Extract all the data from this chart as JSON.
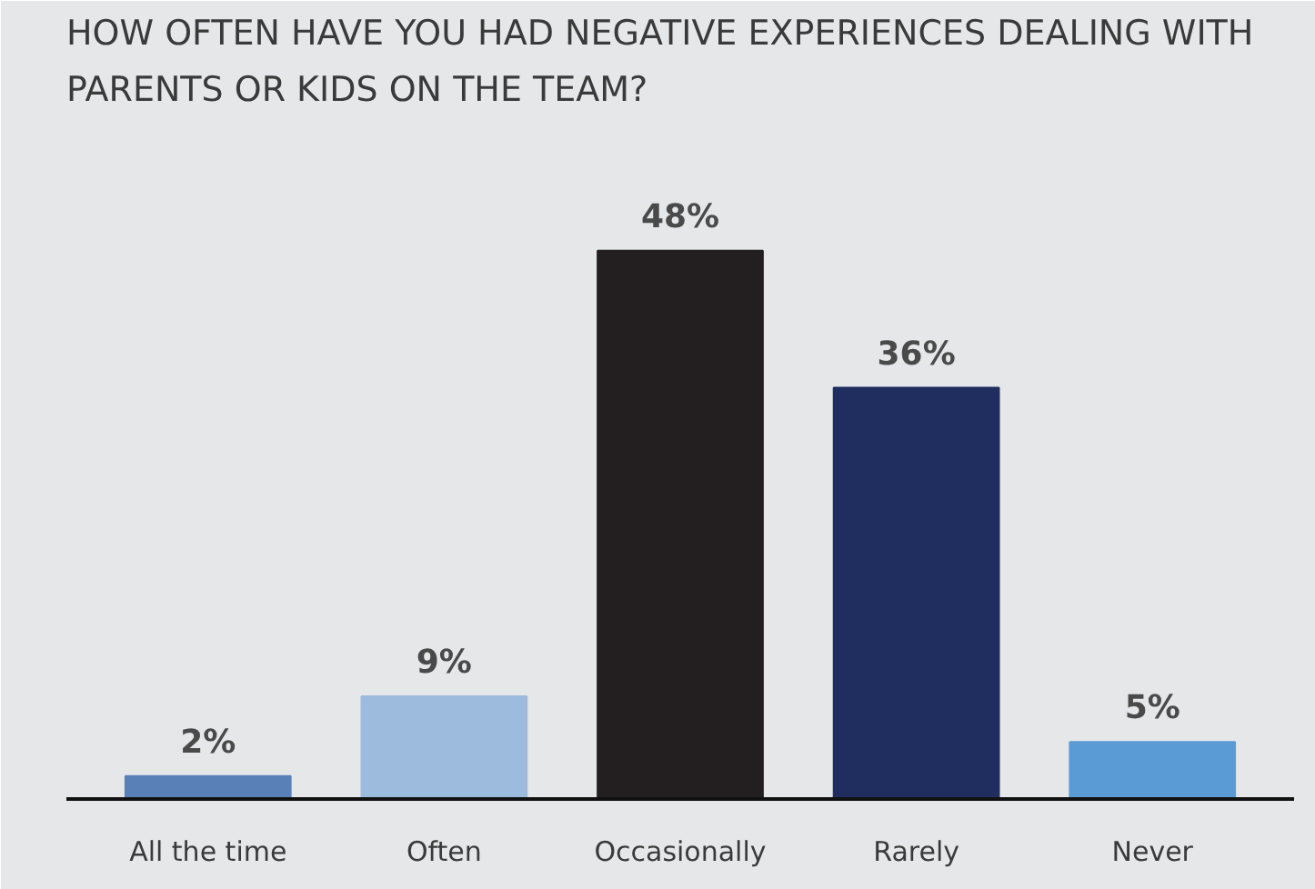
{
  "chart_data": {
    "type": "bar",
    "title": "HOW OFTEN HAVE YOU HAD NEGATIVE EXPERIENCES DEALING WITH\nPARENTS OR KIDS ON THE TEAM?",
    "categories": [
      "All the time",
      "Often",
      "Occasionally",
      "Rarely",
      "Never"
    ],
    "values": [
      2,
      9,
      48,
      36,
      5
    ],
    "colors": [
      "#5a80b8",
      "#9cbbdd",
      "#231f20",
      "#1f2e5f",
      "#5b9bd5"
    ],
    "value_labels": [
      "2%",
      "9%",
      "48%",
      "36%",
      "5%"
    ]
  }
}
